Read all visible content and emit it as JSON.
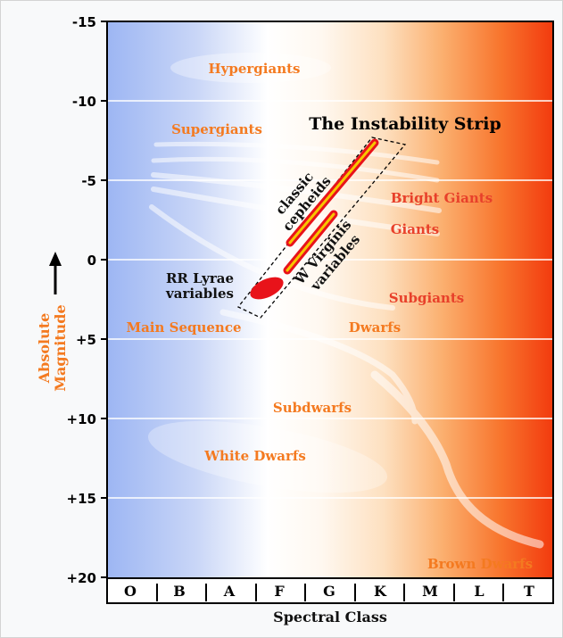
{
  "title": "The Instability Strip",
  "y_ticks": [
    "-15",
    "-10",
    "-5",
    "0",
    "+5",
    "+10",
    "+15",
    "+20"
  ],
  "spectral_classes": [
    "O",
    "B",
    "A",
    "F",
    "G",
    "K",
    "M",
    "L",
    "T"
  ],
  "x_axis_title": "Spectral Class",
  "y_axis_title_line1": "Absolute",
  "y_axis_title_line2": "Magnitude",
  "regions": {
    "hypergiants": "Hypergiants",
    "supergiants": "Supergiants",
    "bright_giants": "Bright Giants",
    "giants": "Giants",
    "subgiants": "Subgiants",
    "main_sequence": "Main Sequence",
    "dwarfs": "Dwarfs",
    "subdwarfs": "Subdwarfs",
    "white_dwarfs": "White Dwarfs",
    "brown_dwarfs": "Brown Dwarfs"
  },
  "strip_labels": {
    "classic_line1": "classic",
    "classic_line2": "cepheids",
    "w_line1": "W Virginis",
    "w_line2": "variables",
    "rr_line1": "RR Lyrae",
    "rr_line2": "variables"
  },
  "colors": {
    "region_orange": "#f47a20",
    "region_red": "#e8402a",
    "gridline": "#ffffff",
    "strip_red": "#e8131a",
    "strip_yellow": "#f7c600"
  }
}
